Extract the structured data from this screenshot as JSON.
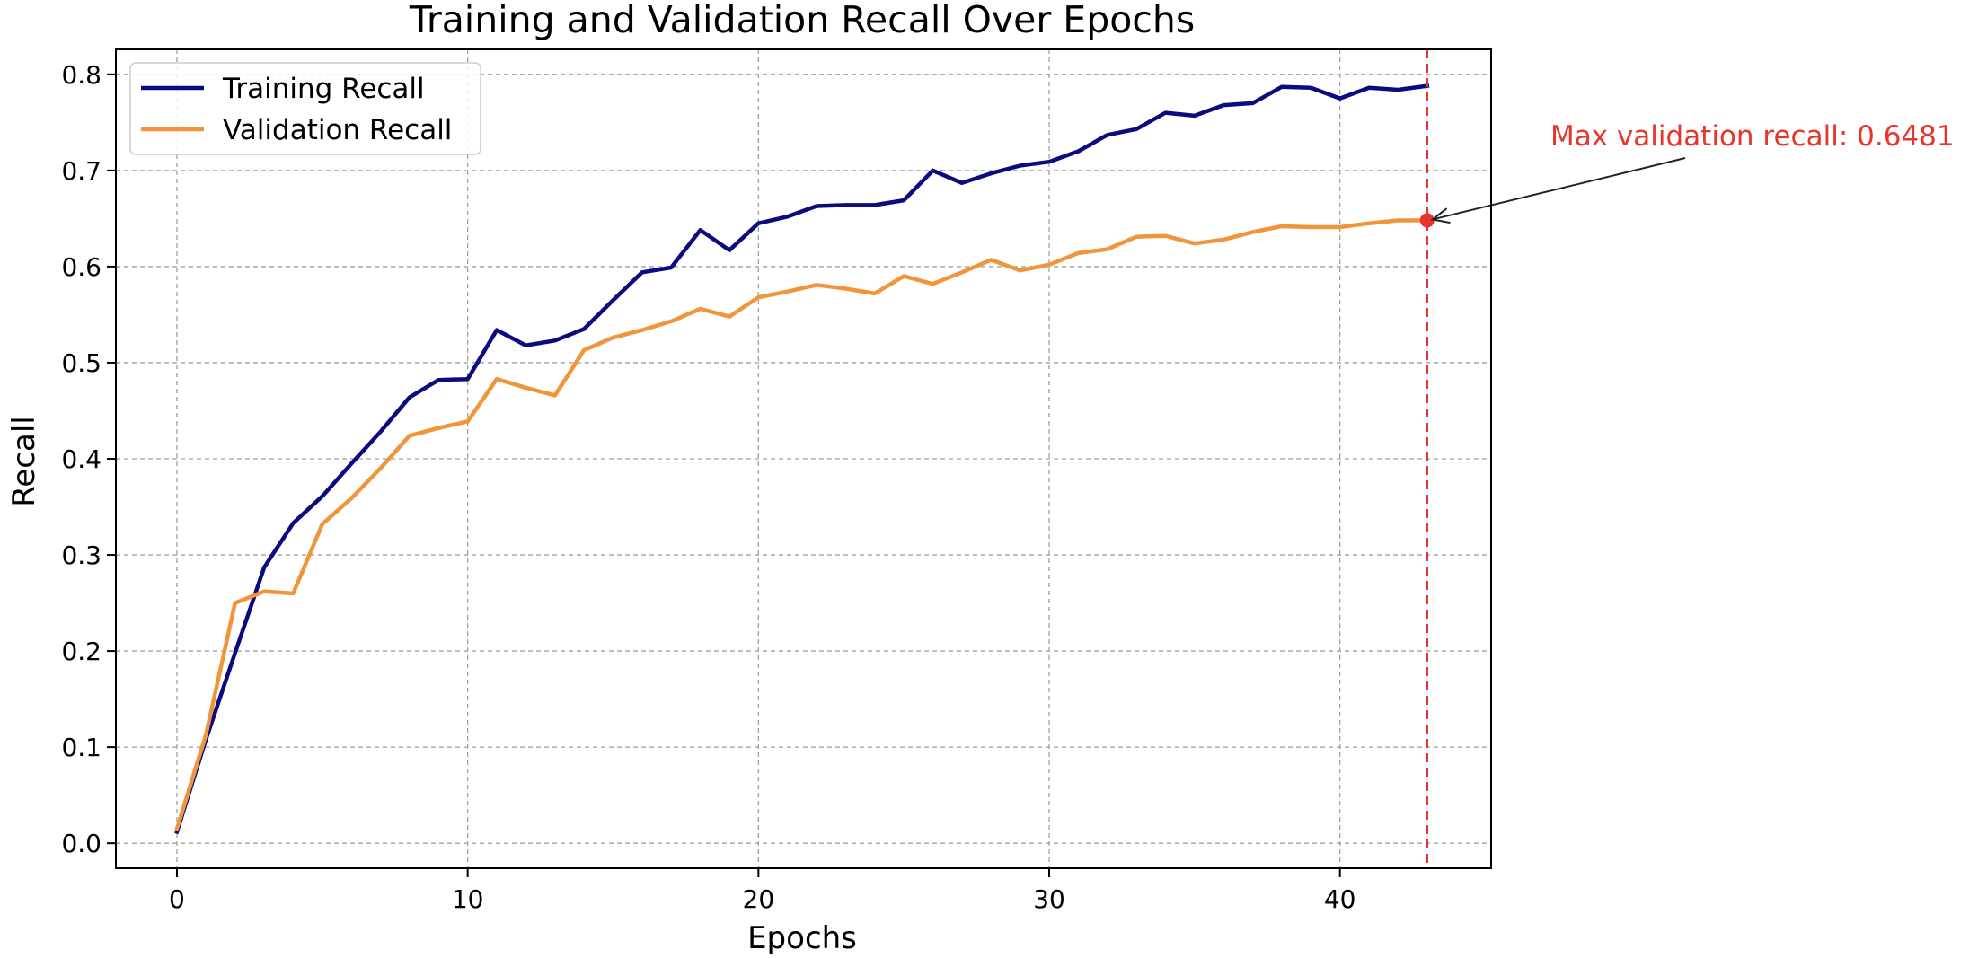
{
  "chart_data": {
    "type": "line",
    "title": "Training and Validation Recall Over Epochs",
    "xlabel": "Epochs",
    "ylabel": "Recall",
    "xlim": [
      -2.1,
      45.2
    ],
    "ylim": [
      -0.026,
      0.826
    ],
    "xticks": [
      0,
      10,
      20,
      30,
      40
    ],
    "yticks": [
      0.0,
      0.1,
      0.2,
      0.3,
      0.4,
      0.5,
      0.6,
      0.7,
      0.8
    ],
    "ytick_labels": [
      "0.0",
      "0.1",
      "0.2",
      "0.3",
      "0.4",
      "0.5",
      "0.6",
      "0.7",
      "0.8"
    ],
    "grid": true,
    "legend_position": "top-left",
    "x": [
      0,
      1,
      2,
      3,
      4,
      5,
      6,
      7,
      8,
      9,
      10,
      11,
      12,
      13,
      14,
      15,
      16,
      17,
      18,
      19,
      20,
      21,
      22,
      23,
      24,
      25,
      26,
      27,
      28,
      29,
      30,
      31,
      32,
      33,
      34,
      35,
      36,
      37,
      38,
      39,
      40,
      41,
      42,
      43
    ],
    "series": [
      {
        "name": "Training Recall",
        "color": "#0b0b80",
        "values": [
          0.012,
          0.108,
          0.198,
          0.287,
          0.333,
          0.361,
          0.395,
          0.428,
          0.464,
          0.482,
          0.483,
          0.534,
          0.518,
          0.523,
          0.535,
          0.565,
          0.594,
          0.599,
          0.638,
          0.617,
          0.645,
          0.652,
          0.663,
          0.664,
          0.664,
          0.669,
          0.7,
          0.687,
          0.697,
          0.705,
          0.709,
          0.72,
          0.737,
          0.743,
          0.76,
          0.757,
          0.768,
          0.77,
          0.787,
          0.786,
          0.775,
          0.786,
          0.784,
          0.788
        ]
      },
      {
        "name": "Validation Recall",
        "color": "#f0953a",
        "values": [
          0.015,
          0.113,
          0.25,
          0.262,
          0.26,
          0.332,
          0.359,
          0.39,
          0.424,
          0.432,
          0.439,
          0.483,
          0.474,
          0.466,
          0.513,
          0.526,
          0.534,
          0.543,
          0.556,
          0.548,
          0.568,
          0.574,
          0.581,
          0.577,
          0.572,
          0.59,
          0.582,
          0.594,
          0.607,
          0.596,
          0.602,
          0.614,
          0.618,
          0.631,
          0.632,
          0.624,
          0.628,
          0.636,
          0.642,
          0.641,
          0.641,
          0.645,
          0.648,
          0.6481
        ]
      }
    ],
    "annotation": {
      "text": "Max validation recall: 0.6481",
      "x": 43,
      "y": 0.6481,
      "color": "#e8352b",
      "marker_color": "#e8352b",
      "arrow_color": "#222222"
    }
  }
}
